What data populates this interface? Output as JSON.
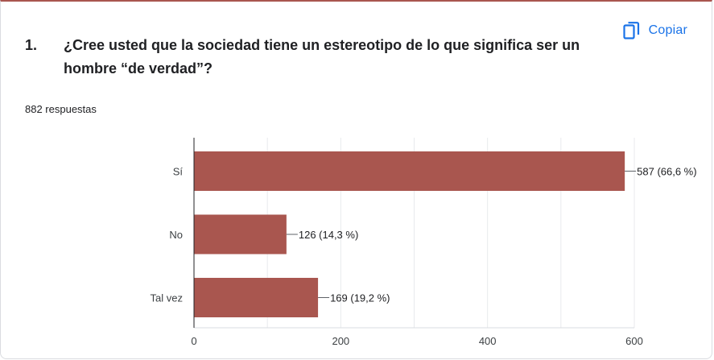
{
  "question": {
    "number": "1.",
    "text": "¿Cree usted que la sociedad tiene un estereotipo de lo que significa ser un hombre “de verdad”?"
  },
  "copy_label": "Copiar",
  "responses_label": "882 respuestas",
  "colors": {
    "bar": "#a9564f",
    "accent": "#1a73e8",
    "grid": "#e8eaed"
  },
  "icons": {
    "copy": "copy-icon"
  },
  "chart_data": {
    "type": "bar",
    "orientation": "horizontal",
    "categories": [
      "Sí",
      "No",
      "Tal vez"
    ],
    "values": [
      587,
      126,
      169
    ],
    "value_labels": [
      "587 (66,6 %)",
      "126 (14,3 %)",
      "169 (19,2 %)"
    ],
    "xlim": [
      0,
      600
    ],
    "xticks": [
      0,
      200,
      400,
      600
    ],
    "grid": true
  }
}
